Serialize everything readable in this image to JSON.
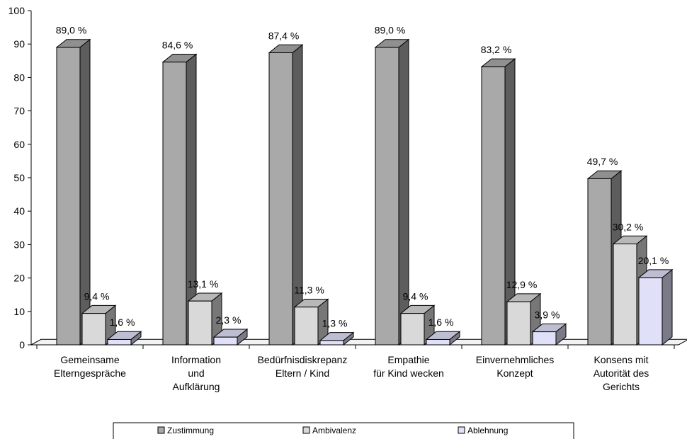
{
  "chart_data": {
    "type": "bar",
    "categories": [
      [
        "Gemeinsame",
        "Elterngespräche"
      ],
      [
        "Information",
        "und",
        "Aufklärung"
      ],
      [
        "Bedürfnisdiskrepanz",
        "Eltern / Kind"
      ],
      [
        "Empathie",
        "für Kind wecken"
      ],
      [
        "Einvernehmliches",
        "Konzept"
      ],
      [
        "Konsens mit",
        "Autorität des",
        "Gerichts"
      ]
    ],
    "series": [
      {
        "name": "Zustimmung",
        "values": [
          89.0,
          84.6,
          87.4,
          89.0,
          83.2,
          49.7
        ],
        "labels": [
          "89,0 %",
          "84,6 %",
          "87,4 %",
          "89,0 %",
          "83,2 %",
          "49,7 %"
        ],
        "color": "#a9a9a9"
      },
      {
        "name": "Ambivalenz",
        "values": [
          9.4,
          13.1,
          11.3,
          9.4,
          12.9,
          30.2
        ],
        "labels": [
          "9,4 %",
          "13,1 %",
          "11,3 %",
          "9,4 %",
          "12,9 %",
          "30,2 %"
        ],
        "color": "#d9d9d9"
      },
      {
        "name": "Ablehnung",
        "values": [
          1.6,
          2.3,
          1.3,
          1.6,
          3.9,
          20.1
        ],
        "labels": [
          "1,6 %",
          "2,3 %",
          "1,3 %",
          "1,6 %",
          "3,9 %",
          "20,1 %"
        ],
        "color": "#e0e0f8"
      }
    ],
    "title": "",
    "xlabel": "",
    "ylabel": "",
    "ylim": [
      0,
      100
    ],
    "yticks": [
      0,
      10,
      20,
      30,
      40,
      50,
      60,
      70,
      80,
      90,
      100
    ],
    "grid": false,
    "legend_position": "bottom",
    "style": "3d-columns"
  }
}
